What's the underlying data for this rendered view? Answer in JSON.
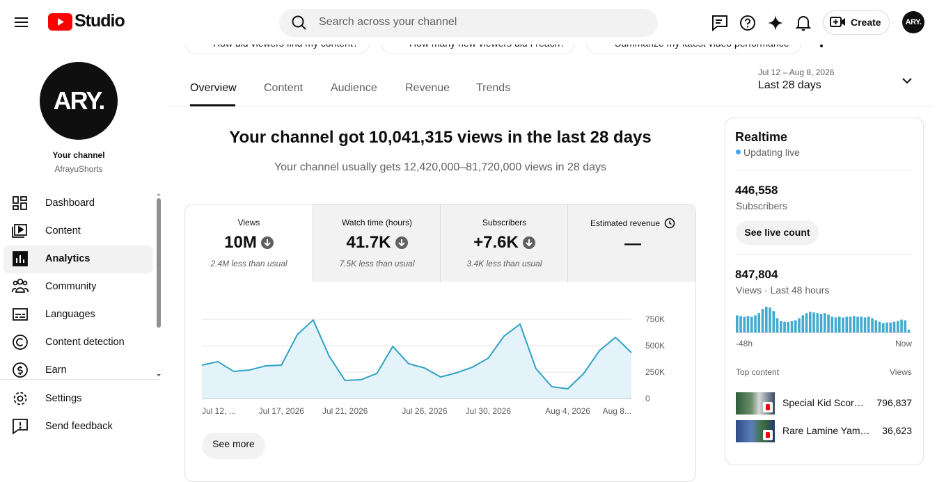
{
  "header": {
    "logo": "Studio",
    "search_placeholder": "Search across your channel",
    "create": "Create",
    "avatar": "ARY."
  },
  "chips": [
    "How did viewers find my content?",
    "How many new viewers did I reach?",
    "Summarize my latest video performance"
  ],
  "sidebar": {
    "channel_avatar": "ARY.",
    "channel_label": "Your channel",
    "channel_name": "AfrayuShorts",
    "nav": [
      "Dashboard",
      "Content",
      "Analytics",
      "Community",
      "Languages",
      "Content detection",
      "Earn"
    ],
    "footer": [
      "Settings",
      "Send feedback"
    ]
  },
  "tabs": [
    "Overview",
    "Content",
    "Audience",
    "Revenue",
    "Trends"
  ],
  "date_range": {
    "dates": "Jul 12 – Aug 8, 2026",
    "label": "Last 28 days"
  },
  "headline": "Your channel got 10,041,315 views in the last 28 days",
  "subline": "Your channel usually gets 12,420,000–81,720,000 views in 28 days",
  "metrics": [
    {
      "label": "Views",
      "value": "10M",
      "note": "2.4M less than usual"
    },
    {
      "label": "Watch time (hours)",
      "value": "41.7K",
      "note": "7.5K less than usual"
    },
    {
      "label": "Subscribers",
      "value": "+7.6K",
      "note": "3.4K less than usual"
    },
    {
      "label": "Estimated revenue",
      "value": "—"
    }
  ],
  "see_more": "See more",
  "realtime": {
    "title": "Realtime",
    "status": "Updating live",
    "subscribers": "446,558",
    "subscribers_label": "Subscribers",
    "button": "See live count",
    "views": "847,804",
    "views_label": "Views · Last 48 hours"
  },
  "top_content": {
    "title": "Top content",
    "column": "Views",
    "items": [
      {
        "title": "Special Kid Scor…",
        "views": "796,837"
      },
      {
        "title": "Rare Lamine Yam…",
        "views": "36,623"
      }
    ]
  },
  "chart_data": [
    {
      "type": "line",
      "color": "#2ea1c6",
      "fill": "#e4f3f9",
      "grid": true,
      "categories": [
        "Jul 12, ...",
        null,
        null,
        null,
        null,
        "Jul 17, 2026",
        null,
        null,
        null,
        "Jul 21, 2026",
        null,
        null,
        null,
        null,
        "Jul 26, 2026",
        null,
        null,
        null,
        "Jul 30, 2026",
        null,
        null,
        null,
        null,
        "Aug 4, 2026",
        null,
        null,
        null,
        "Aug 8..."
      ],
      "values": [
        316000,
        349000,
        257000,
        270000,
        309000,
        316000,
        605000,
        743000,
        401000,
        171000,
        178000,
        237000,
        493000,
        329000,
        289000,
        204000,
        243000,
        296000,
        382000,
        592000,
        704000,
        283000,
        112000,
        92000,
        237000,
        454000,
        579000,
        434000
      ],
      "ylim": [
        0,
        750000
      ],
      "yticks": [
        0,
        {
          "value": 250000,
          "label": "250K"
        },
        {
          "value": 500000,
          "label": "500K"
        },
        {
          "value": 750000,
          "label": "750K"
        }
      ]
    },
    {
      "type": "bar",
      "color": "#41aad0",
      "categories": [
        "-48h",
        null,
        null,
        null,
        null,
        null,
        null,
        null,
        null,
        null,
        null,
        null,
        null,
        null,
        null,
        null,
        null,
        null,
        null,
        null,
        null,
        null,
        null,
        null,
        null,
        null,
        null,
        null,
        null,
        null,
        null,
        null,
        null,
        null,
        null,
        null,
        null,
        null,
        null,
        null,
        null,
        null,
        null,
        null,
        null,
        null,
        null,
        "Now"
      ],
      "values": [
        21100,
        20200,
        19400,
        20200,
        19400,
        21100,
        23800,
        29000,
        31700,
        30800,
        26400,
        17600,
        14100,
        13200,
        13200,
        14100,
        15000,
        17600,
        21100,
        23800,
        25500,
        24600,
        23800,
        22900,
        23800,
        22000,
        19400,
        18500,
        19400,
        18500,
        19400,
        19400,
        20200,
        19400,
        19400,
        18500,
        19400,
        17600,
        15000,
        13200,
        11400,
        12300,
        12300,
        13200,
        14100,
        15800,
        15000,
        3500
      ]
    }
  ]
}
